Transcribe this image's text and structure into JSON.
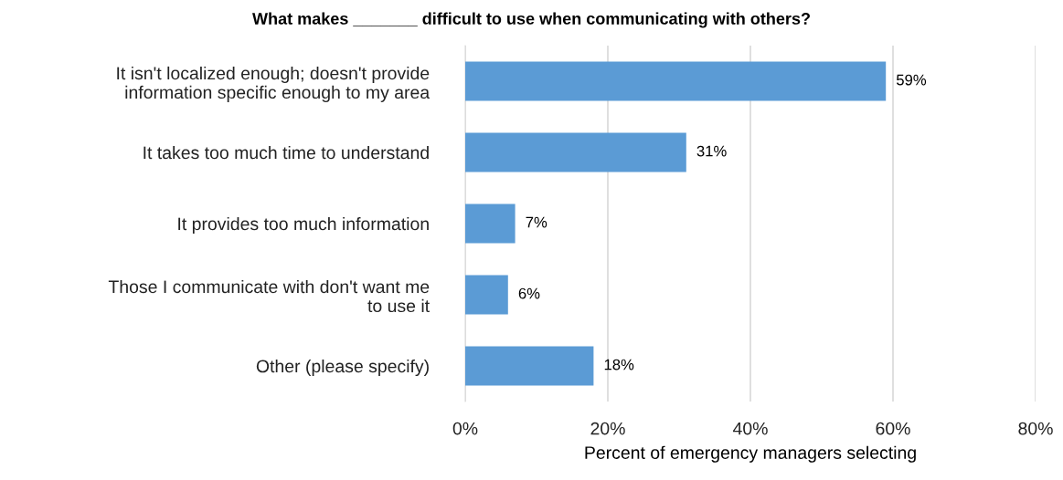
{
  "chart_data": {
    "type": "bar",
    "orientation": "horizontal",
    "title": "What makes _______ difficult to use when communicating with others?",
    "xlabel": "Percent of emergency managers selecting",
    "categories": [
      "It isn't localized enough; doesn't provide\ninformation specific enough to my area",
      "It takes too much time to understand",
      "It provides too much information",
      "Those I communicate with don't want me\nto use it",
      "Other (please specify)"
    ],
    "values": [
      59,
      31,
      7,
      6,
      18
    ],
    "value_labels": [
      "59%",
      "31%",
      "7%",
      "6%",
      "18%"
    ],
    "color": "#5b9bd5",
    "xlim": [
      0,
      80
    ],
    "xticks": [
      {
        "value": 0,
        "label": "0%"
      },
      {
        "value": 20,
        "label": "20%"
      },
      {
        "value": 40,
        "label": "40%"
      },
      {
        "value": 60,
        "label": "60%"
      },
      {
        "value": 80,
        "label": "80%"
      }
    ],
    "grid": "x",
    "legend": false
  }
}
